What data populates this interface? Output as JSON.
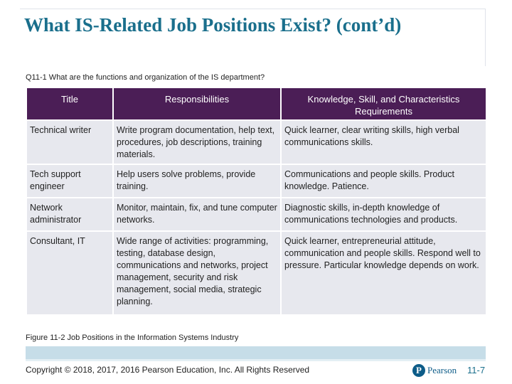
{
  "title": "What IS-Related Job Positions Exist? (cont’d)",
  "subtitle": "Q11-1 What are the functions and organization of the IS department?",
  "table": {
    "headers": [
      "Title",
      "Responsibilities",
      "Knowledge, Skill, and Characteristics Requirements"
    ],
    "rows": [
      [
        "Technical writer",
        "Write program documentation, help text, procedures, job descriptions, training materials.",
        "Quick learner, clear writing skills, high verbal communications skills."
      ],
      [
        "Tech support engineer",
        "Help users solve problems, provide training.",
        "Communications and people skills. Product knowledge. Patience."
      ],
      [
        "Network administrator",
        "Monitor, maintain, fix, and tune computer networks.",
        "Diagnostic skills, in-depth knowledge of communications technologies and products."
      ],
      [
        "Consultant, IT",
        "Wide range of activities: programming, testing, database design, communications and networks, project management, security and risk management, social media, strategic planning.",
        "Quick learner, entrepreneurial attitude, communication and people skills. Respond well to pressure. Particular knowledge depends on work."
      ]
    ]
  },
  "caption": "Figure 11-2 Job Positions in the Information Systems Industry",
  "footer": {
    "copyright": "Copyright © 2018, 2017, 2016 Pearson Education, Inc. All Rights Reserved",
    "logo_mark": "P",
    "logo_text": "Pearson",
    "page_number": "11-7"
  }
}
